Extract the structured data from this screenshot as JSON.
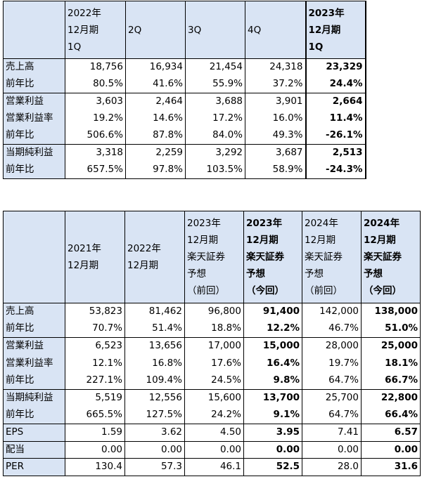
{
  "table1": {
    "headers": [
      [],
      [
        "2022年",
        "12月期",
        "1Q"
      ],
      [
        "2Q"
      ],
      [
        "3Q"
      ],
      [
        "4Q"
      ],
      [
        "2023年",
        "12月期",
        "1Q"
      ]
    ],
    "groups": [
      [
        {
          "label": "売上高",
          "values": [
            "18,756",
            "16,934",
            "21,454",
            "24,318",
            "23,329"
          ]
        },
        {
          "label": "前年比",
          "values": [
            "80.5%",
            "41.6%",
            "55.9%",
            "37.2%",
            "24.4%"
          ]
        }
      ],
      [
        {
          "label": "営業利益",
          "values": [
            "3,603",
            "2,464",
            "3,688",
            "3,901",
            "2,664"
          ]
        },
        {
          "label": "営業利益率",
          "values": [
            "19.2%",
            "14.6%",
            "17.2%",
            "16.0%",
            "11.4%"
          ]
        },
        {
          "label": "前年比",
          "values": [
            "506.6%",
            "87.8%",
            "84.0%",
            "49.3%",
            "-26.1%"
          ]
        }
      ],
      [
        {
          "label": "当期純利益",
          "values": [
            "3,318",
            "2,259",
            "3,292",
            "3,687",
            "2,513"
          ]
        },
        {
          "label": "前年比",
          "values": [
            "657.5%",
            "97.8%",
            "103.5%",
            "58.9%",
            "-24.3%"
          ]
        }
      ]
    ]
  },
  "table2": {
    "headers": [
      [],
      [
        "2021年",
        "12月期"
      ],
      [
        "2022年",
        "12月期"
      ],
      [
        "2023年",
        "12月期",
        "楽天証券",
        "予想",
        "（前回）"
      ],
      [
        "2023年",
        "12月期",
        "楽天証券",
        "予想",
        "（今回）"
      ],
      [
        "2024年",
        "12月期",
        "楽天証券",
        "予想",
        "（前回）"
      ],
      [
        "2024年",
        "12月期",
        "楽天証券",
        "予想",
        "（今回）"
      ]
    ],
    "groups": [
      [
        {
          "label": "売上高",
          "values": [
            "53,823",
            "81,462",
            "96,800",
            "91,400",
            "142,000",
            "138,000"
          ]
        },
        {
          "label": "前年比",
          "values": [
            "70.7%",
            "51.4%",
            "18.8%",
            "12.2%",
            "46.7%",
            "51.0%"
          ]
        }
      ],
      [
        {
          "label": "営業利益",
          "values": [
            "6,523",
            "13,656",
            "17,000",
            "15,000",
            "28,000",
            "25,000"
          ]
        },
        {
          "label": "営業利益率",
          "values": [
            "12.1%",
            "16.8%",
            "17.6%",
            "16.4%",
            "19.7%",
            "18.1%"
          ]
        },
        {
          "label": "前年比",
          "values": [
            "227.1%",
            "109.4%",
            "24.5%",
            "9.8%",
            "64.7%",
            "66.7%"
          ]
        }
      ],
      [
        {
          "label": "当期純利益",
          "values": [
            "5,519",
            "12,556",
            "15,600",
            "13,700",
            "25,700",
            "22,800"
          ]
        },
        {
          "label": "前年比",
          "values": [
            "665.5%",
            "127.5%",
            "24.2%",
            "9.1%",
            "64.7%",
            "66.4%"
          ]
        }
      ],
      [
        {
          "label": "EPS",
          "values": [
            "1.59",
            "3.62",
            "4.50",
            "3.95",
            "7.41",
            "6.57"
          ]
        }
      ],
      [
        {
          "label": "配当",
          "values": [
            "0.00",
            "0.00",
            "0.00",
            "0.00",
            "0.00",
            "0.00"
          ]
        }
      ],
      [
        {
          "label": "PER",
          "values": [
            "130.4",
            "57.3",
            "46.1",
            "52.5",
            "28.0",
            "31.6"
          ]
        }
      ]
    ]
  }
}
